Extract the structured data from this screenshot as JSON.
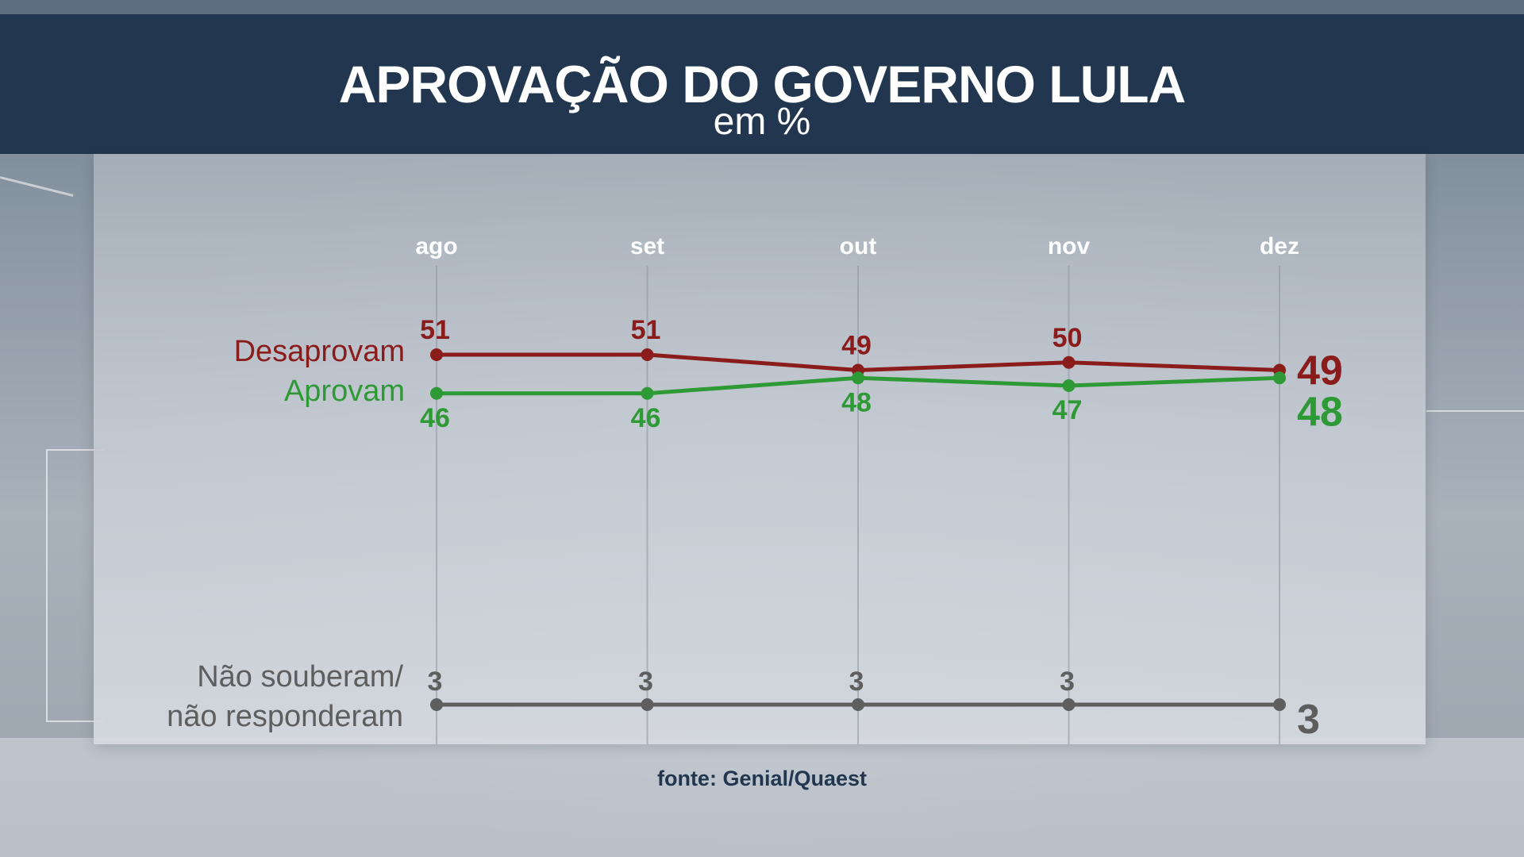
{
  "header": {
    "title": "APROVAÇÃO DO GOVERNO LULA",
    "subtitle": "em %"
  },
  "footer": {
    "source": "fonte: Genial/Quaest"
  },
  "colors": {
    "desaprovam": "#8b1c1c",
    "aprovam": "#2e9a36",
    "nao_souberam": "#5e5e5e",
    "header_bg": "#22374f",
    "month_label": "#ffffff"
  },
  "chart_data": {
    "type": "line",
    "title": "APROVAÇÃO DO GOVERNO LULA",
    "subtitle": "em %",
    "categories": [
      "ago",
      "set",
      "out",
      "nov",
      "dez"
    ],
    "series": [
      {
        "key": "desaprovam",
        "name": "Desaprovam",
        "values": [
          51,
          51,
          49,
          50,
          49
        ]
      },
      {
        "key": "aprovam",
        "name": "Aprovam",
        "values": [
          46,
          46,
          48,
          47,
          48
        ]
      },
      {
        "key": "nao_souberam",
        "name": "Não souberam/ não responderam",
        "name_lines": [
          "Não souberam/",
          "não responderam"
        ],
        "values": [
          3,
          3,
          3,
          3,
          3
        ]
      }
    ],
    "grid": "vertical",
    "legend": "left of lines"
  }
}
